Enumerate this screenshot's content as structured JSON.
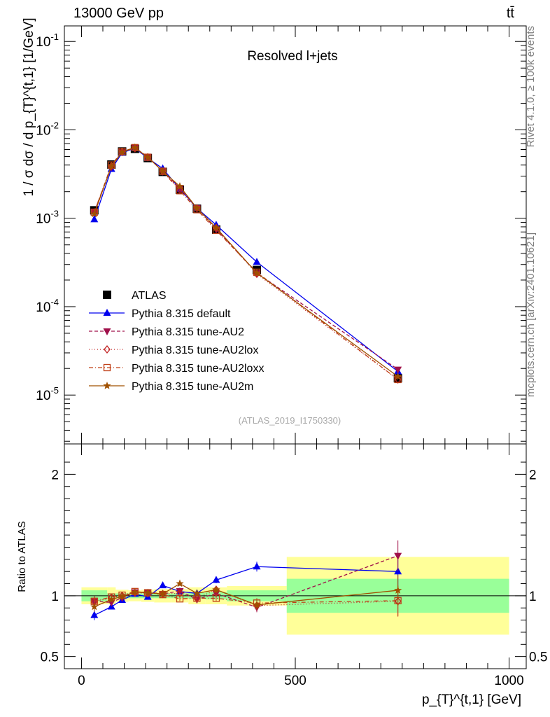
{
  "header": {
    "energy": "13000 GeV pp",
    "process": "tt̄"
  },
  "side_labels": {
    "rivet": "Rivet 4.1.0, ≥ 100k events",
    "site": "mcplots.cern.ch [arXiv:2401.10621]"
  },
  "chart_data": [
    {
      "type": "line",
      "panel": "main",
      "title": "Resolved l+jets",
      "analysis_tag": "(ATLAS_2019_I1750330)",
      "xlabel": "p_{T}^{t,1} [GeV]",
      "ylabel": "1 / σ dσ / d p_{T}^{t,1} [1/GeV]",
      "yscale": "log",
      "xlim": [
        -40,
        1040
      ],
      "ylim": [
        2.8e-06,
        0.15
      ],
      "ytick_labels": [
        "10^-5",
        "10^-4",
        "10^-3",
        "10^-2",
        "10^-1"
      ],
      "x": [
        30,
        70,
        95,
        125,
        155,
        190,
        230,
        270,
        315,
        410,
        740
      ],
      "x_edges": [
        0,
        60,
        80,
        110,
        140,
        170,
        210,
        250,
        290,
        340,
        480,
        1000
      ],
      "legend_position": "middle-left",
      "series": [
        {
          "name": "ATLAS",
          "color": "#000000",
          "marker": "square",
          "dash": "",
          "values": [
            0.00123,
            0.00405,
            0.0057,
            0.0061,
            0.0048,
            0.00335,
            0.0021,
            0.00128,
            0.000745,
            0.00026,
            1.55e-05
          ]
        },
        {
          "name": "Pythia 8.315 default",
          "color": "#0000ee",
          "marker": "triangle-up",
          "dash": "",
          "values": [
            0.00097,
            0.0036,
            0.0055,
            0.0062,
            0.0048,
            0.00365,
            0.00215,
            0.0013,
            0.00084,
            0.00032,
            1.85e-05
          ]
        },
        {
          "name": "Pythia 8.315 tune-AU2",
          "color": "#a0104a",
          "marker": "triangle-down",
          "dash": "5,3",
          "values": [
            0.00118,
            0.0038,
            0.0056,
            0.0063,
            0.00495,
            0.0034,
            0.0022,
            0.00131,
            0.00075,
            0.00024,
            1.95e-05
          ]
        },
        {
          "name": "Pythia 8.315 tune-AU2lox",
          "color": "#c02020",
          "marker": "diamond",
          "dash": "1,3",
          "values": [
            0.00117,
            0.0039,
            0.00565,
            0.0062,
            0.0049,
            0.0034,
            0.0021,
            0.0013,
            0.00078,
            0.000235,
            1.5e-05
          ]
        },
        {
          "name": "Pythia 8.315 tune-AU2loxx",
          "color": "#c04018",
          "marker": "square-open",
          "dash": "6,3,1,3",
          "values": [
            0.00117,
            0.004,
            0.0057,
            0.0063,
            0.0049,
            0.0034,
            0.00205,
            0.00125,
            0.00073,
            0.000245,
            1.5e-05
          ]
        },
        {
          "name": "Pythia 8.315 tune-AU2m",
          "color": "#a05000",
          "marker": "star",
          "dash": "",
          "values": [
            0.00112,
            0.0039,
            0.0056,
            0.0063,
            0.0049,
            0.0034,
            0.0023,
            0.0013,
            0.00078,
            0.00024,
            1.62e-05
          ]
        }
      ]
    },
    {
      "type": "line",
      "panel": "ratio",
      "ylabel": "Ratio to ATLAS",
      "xlabel": "p_{T}^{t,1} [GeV]",
      "ylim": [
        0.4,
        2.25
      ],
      "x_ticks": [
        0,
        500,
        1000
      ],
      "x_tick_labels": [
        "0",
        "500",
        "1000"
      ],
      "y_ticks": [
        0.5,
        1,
        2
      ],
      "y_tick_labels": [
        "0.5",
        "1",
        "2"
      ],
      "x": [
        30,
        70,
        95,
        125,
        155,
        190,
        230,
        270,
        315,
        410,
        740
      ],
      "band_inner": {
        "label": "stat",
        "color": "#99ff99",
        "halfwidth": [
          0.045,
          0.02,
          0.02,
          0.02,
          0.02,
          0.02,
          0.02,
          0.025,
          0.03,
          0.045,
          0.14
        ]
      },
      "band_outer": {
        "label": "total",
        "color": "#ffff99",
        "halfwidth": [
          0.07,
          0.07,
          0.05,
          0.045,
          0.05,
          0.055,
          0.055,
          0.07,
          0.07,
          0.08,
          0.32
        ]
      },
      "series": [
        {
          "name": "Pythia 8.315 default",
          "values": [
            0.84,
            0.91,
            0.965,
            1.015,
            0.99,
            1.085,
            1.035,
            1.02,
            1.13,
            1.24,
            1.2
          ]
        },
        {
          "name": "Pythia 8.315 tune-AU2",
          "values": [
            0.955,
            0.945,
            0.985,
            1.03,
            1.03,
            1.015,
            1.04,
            0.97,
            1.02,
            0.905,
            1.33
          ]
        },
        {
          "name": "Pythia 8.315 tune-AU2lox",
          "values": [
            0.95,
            0.985,
            1.0,
            1.025,
            1.02,
            1.015,
            1.02,
            0.98,
            1.05,
            0.92,
            0.955
          ]
        },
        {
          "name": "Pythia 8.315 tune-AU2loxx",
          "values": [
            0.955,
            0.99,
            1.005,
            1.035,
            1.025,
            1.01,
            0.975,
            0.98,
            0.98,
            0.94,
            0.96
          ]
        },
        {
          "name": "Pythia 8.315 tune-AU2m",
          "values": [
            0.91,
            0.97,
            0.995,
            1.03,
            1.025,
            1.015,
            1.1,
            1.02,
            1.05,
            0.925,
            1.045
          ]
        }
      ]
    }
  ]
}
